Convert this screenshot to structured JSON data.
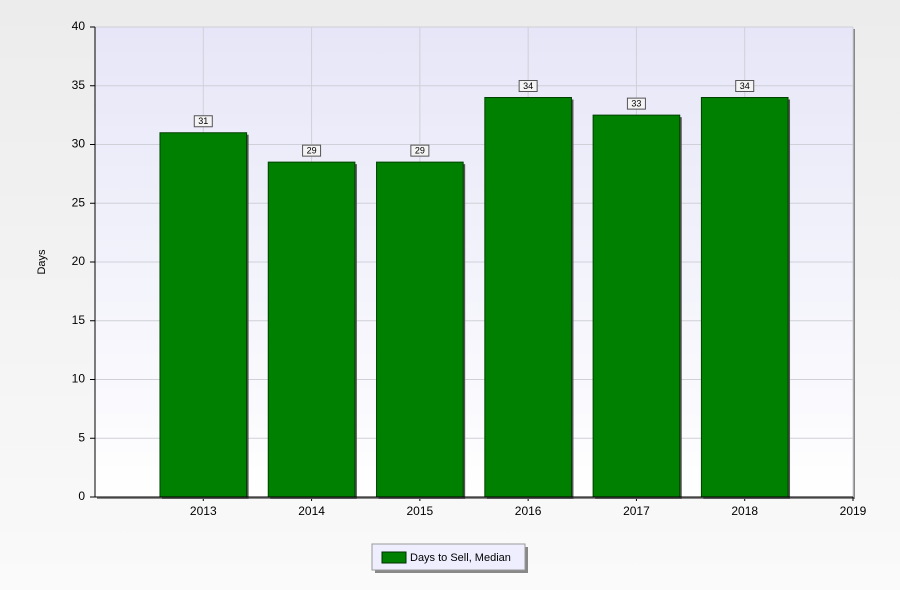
{
  "chart_data": {
    "type": "bar",
    "y_label": "Days",
    "x": [
      2013,
      2014,
      2015,
      2016,
      2017,
      2018
    ],
    "values": [
      31,
      28.5,
      28.5,
      34,
      32.5,
      34
    ],
    "value_labels": [
      "31",
      "29",
      "29",
      "34",
      "33",
      "34"
    ],
    "series_name": "Days to Sell, Median",
    "color": "#008000",
    "xlim": [
      2012,
      2019
    ],
    "xticks": [
      2013,
      2014,
      2015,
      2016,
      2017,
      2018,
      2019
    ],
    "ylim": [
      0,
      40
    ],
    "yticks": [
      0,
      5,
      10,
      15,
      20,
      25,
      30,
      35,
      40
    ],
    "grid": true
  }
}
